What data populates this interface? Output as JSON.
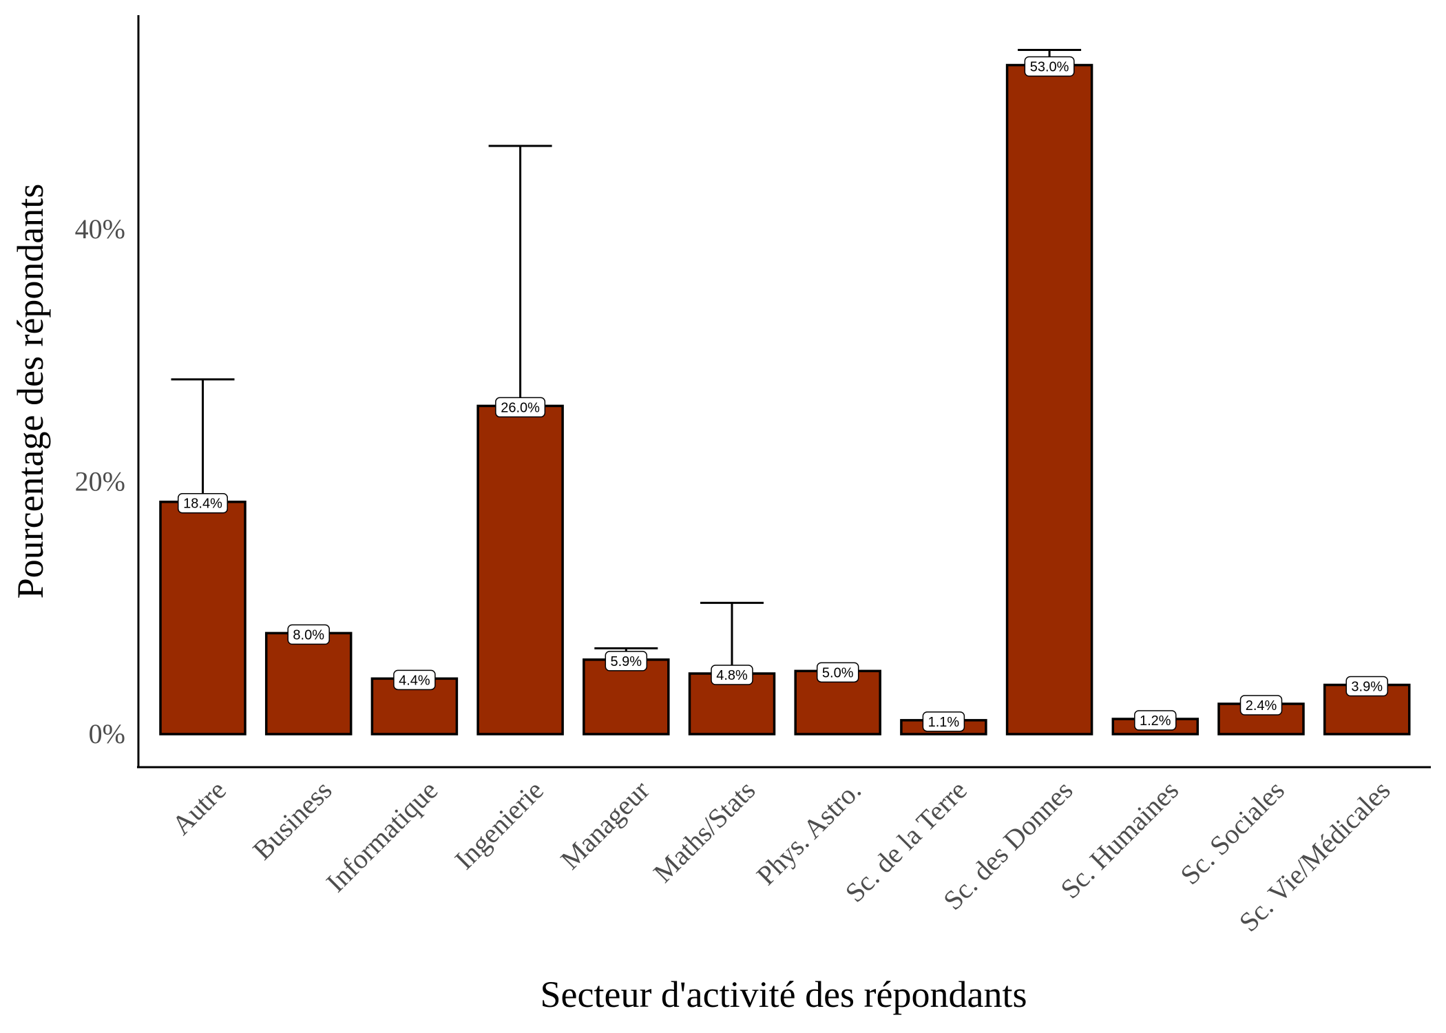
{
  "chart_data": {
    "type": "bar",
    "xlabel": "Secteur d'activité des répondants",
    "ylabel": "Pourcentage des répondants",
    "ylim": [
      0,
      57
    ],
    "yticks": [
      0,
      20,
      40
    ],
    "ytick_labels": [
      "0%",
      "20%",
      "40%"
    ],
    "grid": false,
    "bar_color": "#992a00",
    "categories": [
      "Autre",
      "Business",
      "Informatique",
      "Ingenierie",
      "Manageur",
      "Maths/Stats",
      "Phys. Astro.",
      "Sc. de la Terre",
      "Sc. des Donnes",
      "Sc. Humaines",
      "Sc. Sociales",
      "Sc. Vie/Médicales"
    ],
    "values": [
      18.4,
      8.0,
      4.4,
      26.0,
      5.9,
      4.8,
      5.0,
      1.1,
      53.0,
      1.2,
      2.4,
      3.9
    ],
    "value_labels": [
      "18.4%",
      "8.0%",
      "4.4%",
      "26.0%",
      "5.9%",
      "4.8%",
      "5.0%",
      "1.1%",
      "53.0%",
      "1.2%",
      "2.4%",
      "3.9%"
    ],
    "error_upper": [
      28.1,
      null,
      null,
      46.6,
      6.8,
      10.4,
      null,
      null,
      54.2,
      null,
      null,
      null
    ]
  }
}
